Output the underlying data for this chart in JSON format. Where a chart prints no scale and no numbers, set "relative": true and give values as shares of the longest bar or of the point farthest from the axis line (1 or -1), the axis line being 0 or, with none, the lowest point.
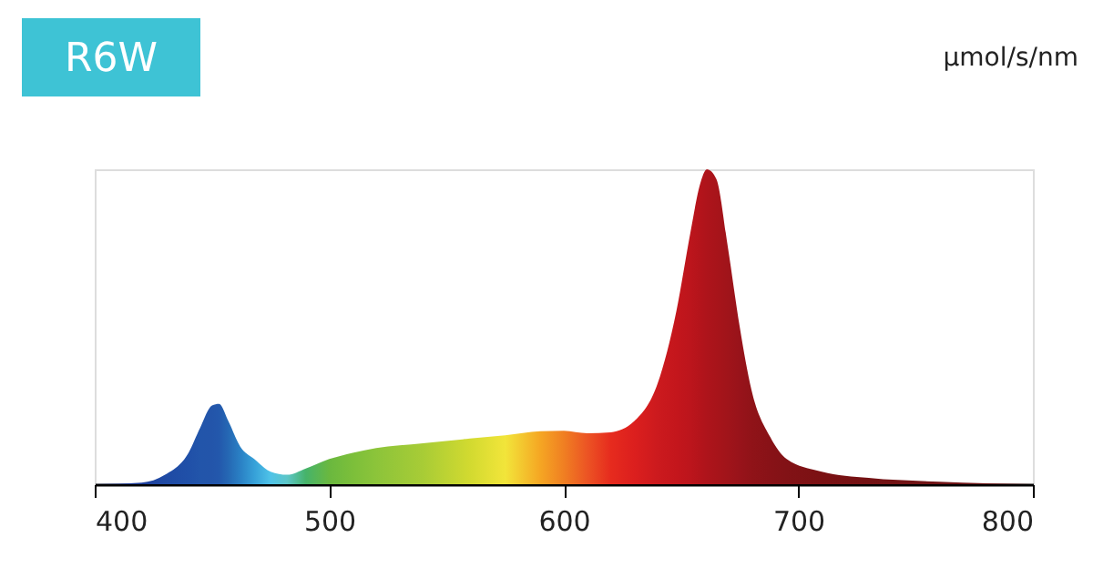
{
  "chart_data": {
    "type": "area",
    "title": "R6W",
    "ylabel": "µmol/s/nm",
    "relative": true,
    "xlim": [
      400,
      800
    ],
    "xticks": [
      400,
      500,
      600,
      700,
      800
    ],
    "grid": false,
    "x": [
      400,
      420,
      430,
      440,
      445,
      450,
      453,
      457,
      462,
      468,
      475,
      482,
      490,
      500,
      510,
      520,
      540,
      560,
      575,
      590,
      600,
      610,
      620,
      630,
      640,
      648,
      654,
      658,
      661,
      665,
      670,
      675,
      680,
      688,
      695,
      710,
      730,
      760,
      800
    ],
    "series": [
      {
        "values": [
          0,
          0.005,
          0.03,
          0.1,
          0.18,
          0.25,
          0.255,
          0.2,
          0.12,
          0.08,
          0.04,
          0.03,
          0.05,
          0.08,
          0.1,
          0.115,
          0.13,
          0.145,
          0.155,
          0.168,
          0.17,
          0.162,
          0.165,
          0.2,
          0.32,
          0.55,
          0.8,
          0.95,
          1.0,
          0.97,
          0.75,
          0.5,
          0.3,
          0.15,
          0.08,
          0.04,
          0.02,
          0.008,
          0
        ],
        "colors": [
          "#1a2f8c",
          "#1f3f9c",
          "#1f4aa4",
          "#2050a8",
          "#2255aa",
          "#2355aa",
          "#2358ac",
          "#2568b4",
          "#2a80c4",
          "#36a0d8",
          "#4fc3e8",
          "#5cc6c8",
          "#46b36a",
          "#6ab83f",
          "#7cbf3a",
          "#8cc43a",
          "#a8cc36",
          "#d2da30",
          "#f2e53a",
          "#f5a623",
          "#f07f22",
          "#ec5424",
          "#e62b1e",
          "#dc1f1e",
          "#cc1a1e",
          "#c4161c",
          "#bc151c",
          "#b4141b",
          "#ae141b",
          "#a8141a",
          "#a0141a",
          "#98131a",
          "#901318",
          "#881217",
          "#821216",
          "#7b1113",
          "#741214",
          "#701416",
          "#6e1a1a"
        ]
      }
    ]
  }
}
